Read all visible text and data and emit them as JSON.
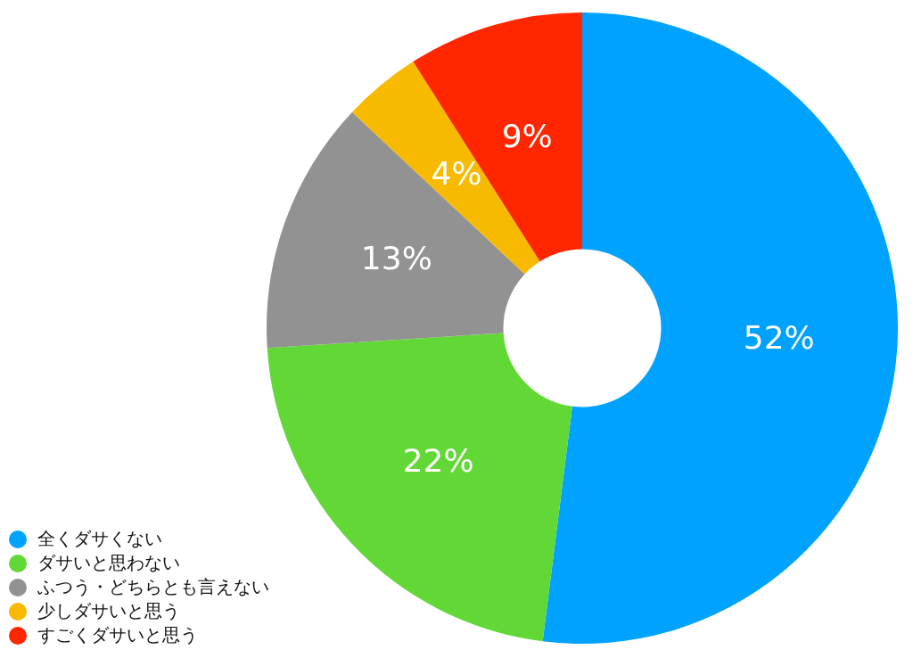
{
  "chart_data": {
    "type": "donut",
    "categories": [
      "全くダサくない",
      "ダサいと思わない",
      "ふつう・どちらとも言えない",
      "少しダサいと思う",
      "すごくダサいと思う"
    ],
    "values": [
      52,
      22,
      13,
      4,
      9
    ],
    "colors": [
      "#00a2ff",
      "#61d836",
      "#929292",
      "#f8ba00",
      "#ff2600"
    ],
    "value_labels": [
      "52%",
      "22%",
      "13%",
      "4%",
      "9%"
    ],
    "legend": "bottom left"
  }
}
